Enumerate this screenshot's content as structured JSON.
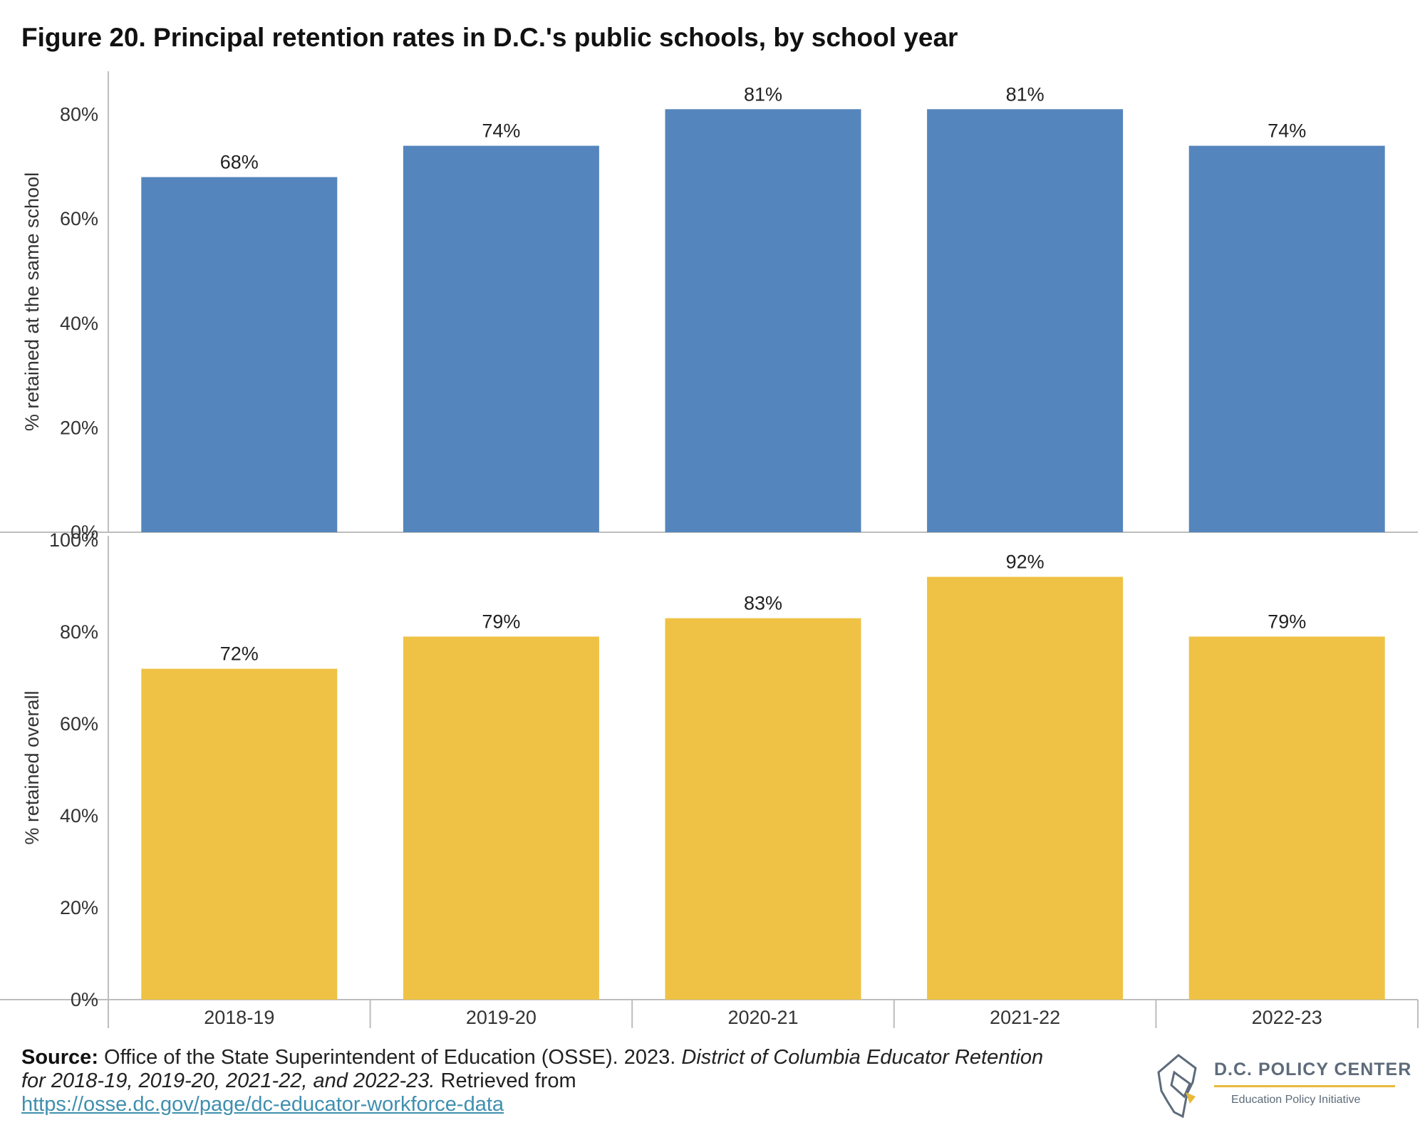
{
  "title": "Figure 20. Principal retention rates in D.C.'s public schools, by school year",
  "colors": {
    "top_bar": "#5585bd",
    "bottom_bar": "#efc245",
    "axis": "#bdbdbd",
    "logo_gold": "#e8b93a",
    "logo_gray": "#5d6b7a"
  },
  "chart_data": [
    {
      "type": "bar",
      "categories": [
        "2018-19",
        "2019-20",
        "2020-21",
        "2021-22",
        "2022-23"
      ],
      "values": [
        68,
        74,
        81,
        81,
        74
      ],
      "data_labels": [
        "68%",
        "74%",
        "81%",
        "81%",
        "74%"
      ],
      "ylabel": "% retained at the same school",
      "ylim": [
        0,
        90
      ],
      "yticks": [
        0,
        20,
        40,
        60,
        80
      ],
      "ytick_labels": [
        "0%",
        "20%",
        "40%",
        "60%",
        "80%"
      ],
      "grid": false
    },
    {
      "type": "bar",
      "categories": [
        "2018-19",
        "2019-20",
        "2020-21",
        "2021-22",
        "2022-23"
      ],
      "values": [
        72,
        79,
        83,
        92,
        79
      ],
      "data_labels": [
        "72%",
        "79%",
        "83%",
        "92%",
        "79%"
      ],
      "ylabel": "% retained overall",
      "ylim": [
        0,
        100
      ],
      "yticks": [
        0,
        20,
        40,
        60,
        80,
        100
      ],
      "ytick_labels": [
        "0%",
        "20%",
        "40%",
        "60%",
        "80%",
        "100%"
      ],
      "grid": false
    }
  ],
  "source": {
    "label": "Source:",
    "text": " Office of the State Superintendent of Education (OSSE). 2023. ",
    "italic": "District of Columbia Educator Retention for 2018-19, 2019-20, 2021-22, and 2022-23.",
    "after": " Retrieved from",
    "link": "https://osse.dc.gov/page/dc-educator-workforce-data"
  },
  "logo": {
    "name": "D.C. POLICY CENTER",
    "subtitle": "Education Policy Initiative"
  }
}
